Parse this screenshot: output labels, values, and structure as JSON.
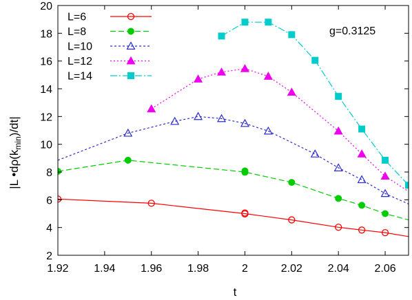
{
  "chart_data": {
    "type": "line",
    "title": "",
    "xlabel": "t",
    "ylabel_parts": {
      "pre": "|L •dρ(k",
      "sub": "min",
      "post": ")/dt|"
    },
    "annotation": "g=0.3125",
    "xlim": [
      1.92,
      2.07
    ],
    "ylim": [
      2,
      20
    ],
    "xticks": [
      1.92,
      1.94,
      1.96,
      1.98,
      2.0,
      2.02,
      2.04,
      2.06
    ],
    "xtick_labels": [
      "1.92",
      "1.94",
      "1.96",
      "1.98",
      "2",
      "2.02",
      "2.04",
      "2.06"
    ],
    "yticks": [
      2,
      4,
      6,
      8,
      10,
      12,
      14,
      16,
      18,
      20
    ],
    "ytick_labels": [
      "2",
      "4",
      "6",
      "8",
      "10",
      "12",
      "14",
      "16",
      "18",
      "20"
    ],
    "legend_position": "top-left",
    "series": [
      {
        "name": "L=6",
        "color": "#ff0000",
        "marker": "circle-open",
        "dash": "",
        "points": [
          [
            1.92,
            6.05
          ],
          [
            1.96,
            5.75
          ],
          [
            2.0,
            5.05
          ],
          [
            2.0,
            4.98
          ],
          [
            2.02,
            4.55
          ],
          [
            2.04,
            4.02
          ],
          [
            2.05,
            3.82
          ],
          [
            2.06,
            3.63
          ]
        ],
        "curve": [
          [
            1.92,
            6.05
          ],
          [
            1.96,
            5.75
          ],
          [
            2.0,
            5.0
          ],
          [
            2.02,
            4.55
          ],
          [
            2.04,
            4.02
          ],
          [
            2.05,
            3.82
          ],
          [
            2.06,
            3.63
          ],
          [
            2.07,
            3.35
          ]
        ]
      },
      {
        "name": "L=8",
        "color": "#00cc00",
        "marker": "circle-filled",
        "dash": "8,4",
        "points": [
          [
            1.92,
            8.05
          ],
          [
            1.95,
            8.85
          ],
          [
            2.0,
            8.08
          ],
          [
            2.0,
            7.98
          ],
          [
            2.02,
            7.25
          ],
          [
            2.04,
            6.1
          ],
          [
            2.05,
            5.6
          ],
          [
            2.06,
            5.0
          ]
        ],
        "curve": [
          [
            1.92,
            8.05
          ],
          [
            1.95,
            8.85
          ],
          [
            2.0,
            8.0
          ],
          [
            2.02,
            7.25
          ],
          [
            2.04,
            6.1
          ],
          [
            2.05,
            5.6
          ],
          [
            2.06,
            5.0
          ],
          [
            2.07,
            4.55
          ]
        ]
      },
      {
        "name": "L=10",
        "color": "#2b2bcf",
        "marker": "triangle-open",
        "dash": "3,3",
        "points": [
          [
            1.95,
            10.8
          ],
          [
            1.97,
            11.65
          ],
          [
            1.98,
            12.0
          ],
          [
            1.99,
            11.85
          ],
          [
            2.0,
            11.5
          ],
          [
            2.01,
            10.95
          ],
          [
            2.03,
            9.3
          ],
          [
            2.04,
            8.3
          ],
          [
            2.05,
            7.45
          ],
          [
            2.06,
            6.45
          ]
        ],
        "curve": [
          [
            1.92,
            8.85
          ],
          [
            1.95,
            10.8
          ],
          [
            1.97,
            11.65
          ],
          [
            1.98,
            12.0
          ],
          [
            1.99,
            11.85
          ],
          [
            2.0,
            11.5
          ],
          [
            2.01,
            10.95
          ],
          [
            2.03,
            9.3
          ],
          [
            2.04,
            8.3
          ],
          [
            2.05,
            7.45
          ],
          [
            2.06,
            6.45
          ],
          [
            2.07,
            5.7
          ]
        ]
      },
      {
        "name": "L=12",
        "color": "#ee00ee",
        "marker": "triangle-filled",
        "dash": "2,3",
        "points": [
          [
            1.96,
            12.55
          ],
          [
            1.98,
            14.7
          ],
          [
            1.99,
            15.2
          ],
          [
            2.0,
            15.45
          ],
          [
            2.01,
            14.9
          ],
          [
            2.02,
            13.75
          ],
          [
            2.04,
            10.95
          ],
          [
            2.05,
            9.3
          ],
          [
            2.06,
            7.7
          ]
        ],
        "curve": [
          [
            1.96,
            12.55
          ],
          [
            1.98,
            14.7
          ],
          [
            1.99,
            15.2
          ],
          [
            2.0,
            15.45
          ],
          [
            2.01,
            14.9
          ],
          [
            2.02,
            13.75
          ],
          [
            2.04,
            10.95
          ],
          [
            2.05,
            9.3
          ],
          [
            2.06,
            7.7
          ],
          [
            2.07,
            6.6
          ]
        ]
      },
      {
        "name": "L=14",
        "color": "#00cccc",
        "marker": "square-filled",
        "dash": "10,3,2,3",
        "points": [
          [
            1.99,
            17.8
          ],
          [
            2.0,
            18.8
          ],
          [
            2.01,
            18.8
          ],
          [
            2.02,
            17.9
          ],
          [
            2.03,
            16.05
          ],
          [
            2.04,
            13.45
          ],
          [
            2.05,
            11.1
          ],
          [
            2.06,
            8.85
          ],
          [
            2.07,
            7.05
          ]
        ],
        "curve": [
          [
            1.99,
            17.8
          ],
          [
            2.0,
            18.8
          ],
          [
            2.01,
            18.8
          ],
          [
            2.02,
            17.9
          ],
          [
            2.03,
            16.05
          ],
          [
            2.04,
            13.45
          ],
          [
            2.05,
            11.1
          ],
          [
            2.06,
            8.85
          ],
          [
            2.07,
            7.05
          ]
        ]
      }
    ]
  }
}
